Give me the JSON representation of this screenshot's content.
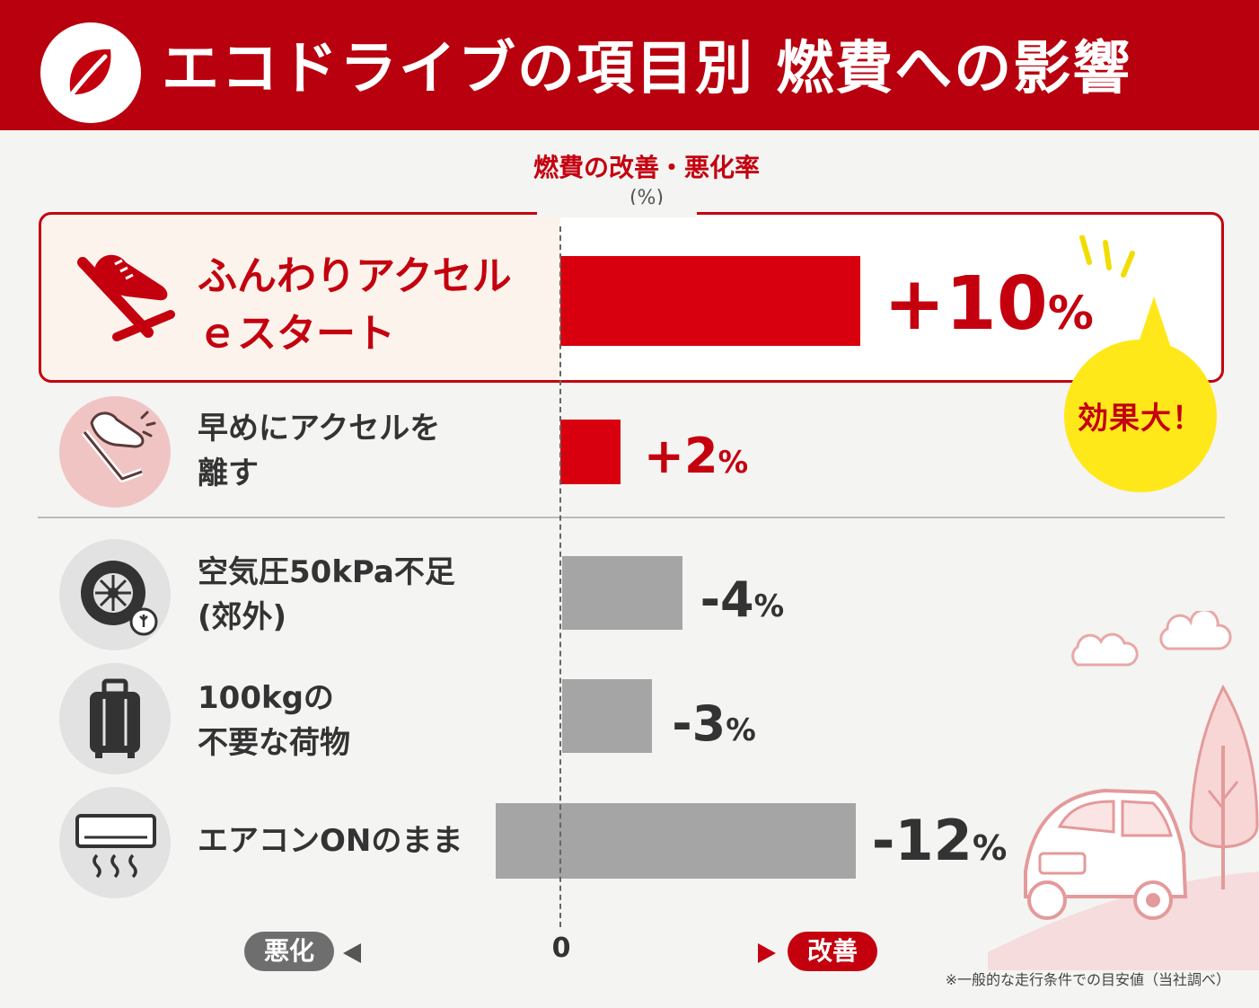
{
  "header": {
    "title": "エコドライブの項目別 燃費への影響",
    "icon": "leaf-icon",
    "background": "#b8000e"
  },
  "chart_data": {
    "type": "bar",
    "orientation": "horizontal",
    "title": "燃費の改善・悪化率",
    "unit": "(%)",
    "categories": [
      "ふんわりアクセル\nｅスタート",
      "早めにアクセルを\n離す",
      "空気圧50kPa不足\n(郊外)",
      "100kgの\n不要な荷物",
      "エアコンONのまま"
    ],
    "values": [
      10,
      2,
      -4,
      -3,
      -12
    ],
    "value_labels": [
      "+10",
      "+2",
      "-4",
      "-3",
      "-12"
    ],
    "value_unit": "%",
    "x_range": [
      -12,
      10
    ],
    "zero_label": "0",
    "negative_direction_label": "悪化",
    "positive_direction_label": "改善",
    "colors": {
      "positive": "#d8000f",
      "negative": "#a5a5a5"
    },
    "grid": false
  },
  "icons": [
    "shoe-pedal-icon",
    "pedal-release-icon",
    "tire-icon",
    "luggage-icon",
    "air-conditioner-icon"
  ],
  "badge": {
    "text": "効果大！",
    "color": "#ffe81a"
  },
  "footnote": "※一般的な走行条件での目安値（当社調べ）",
  "colors": {
    "accent": "#c4000f",
    "background": "#f4f4f2"
  }
}
